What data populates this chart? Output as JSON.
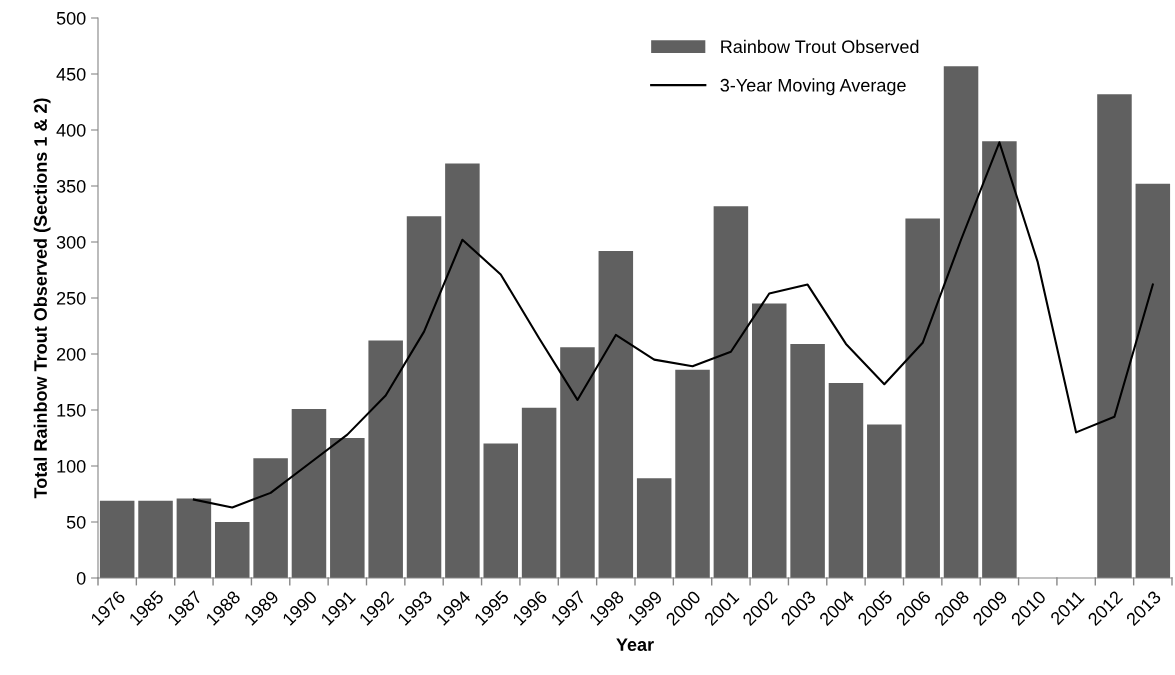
{
  "chart_data": {
    "type": "bar",
    "xlabel": "Year",
    "ylabel": "Total Rainbow Trout Observed (Sections 1 & 2)",
    "categories": [
      "1976",
      "1985",
      "1987",
      "1988",
      "1989",
      "1990",
      "1991",
      "1992",
      "1993",
      "1994",
      "1995",
      "1996",
      "1997",
      "1998",
      "1999",
      "2000",
      "2001",
      "2002",
      "2003",
      "2004",
      "2005",
      "2006",
      "2008",
      "2009",
      "2010",
      "2011",
      "2012",
      "2013"
    ],
    "series": [
      {
        "name": "Rainbow Trout Observed",
        "color": "#606060",
        "values": [
          69,
          69,
          71,
          50,
          107,
          151,
          125,
          212,
          323,
          370,
          120,
          152,
          206,
          292,
          89,
          186,
          332,
          245,
          209,
          174,
          137,
          321,
          457,
          390,
          0,
          0,
          432,
          352
        ]
      },
      {
        "name": "3-Year Moving Average",
        "type": "line",
        "color": "#000000",
        "values": [
          null,
          null,
          70,
          63,
          76,
          102,
          128,
          163,
          220,
          302,
          271,
          214,
          159,
          217,
          195,
          189,
          202,
          254,
          262,
          209,
          173,
          210,
          302,
          389,
          282,
          130,
          144,
          262
        ]
      }
    ],
    "ylim": [
      0,
      500
    ],
    "yticks": [
      0,
      50,
      100,
      150,
      200,
      250,
      300,
      350,
      400,
      450,
      500
    ],
    "grid": false,
    "legend": "top right",
    "marker": "none",
    "line_style": "solid"
  }
}
